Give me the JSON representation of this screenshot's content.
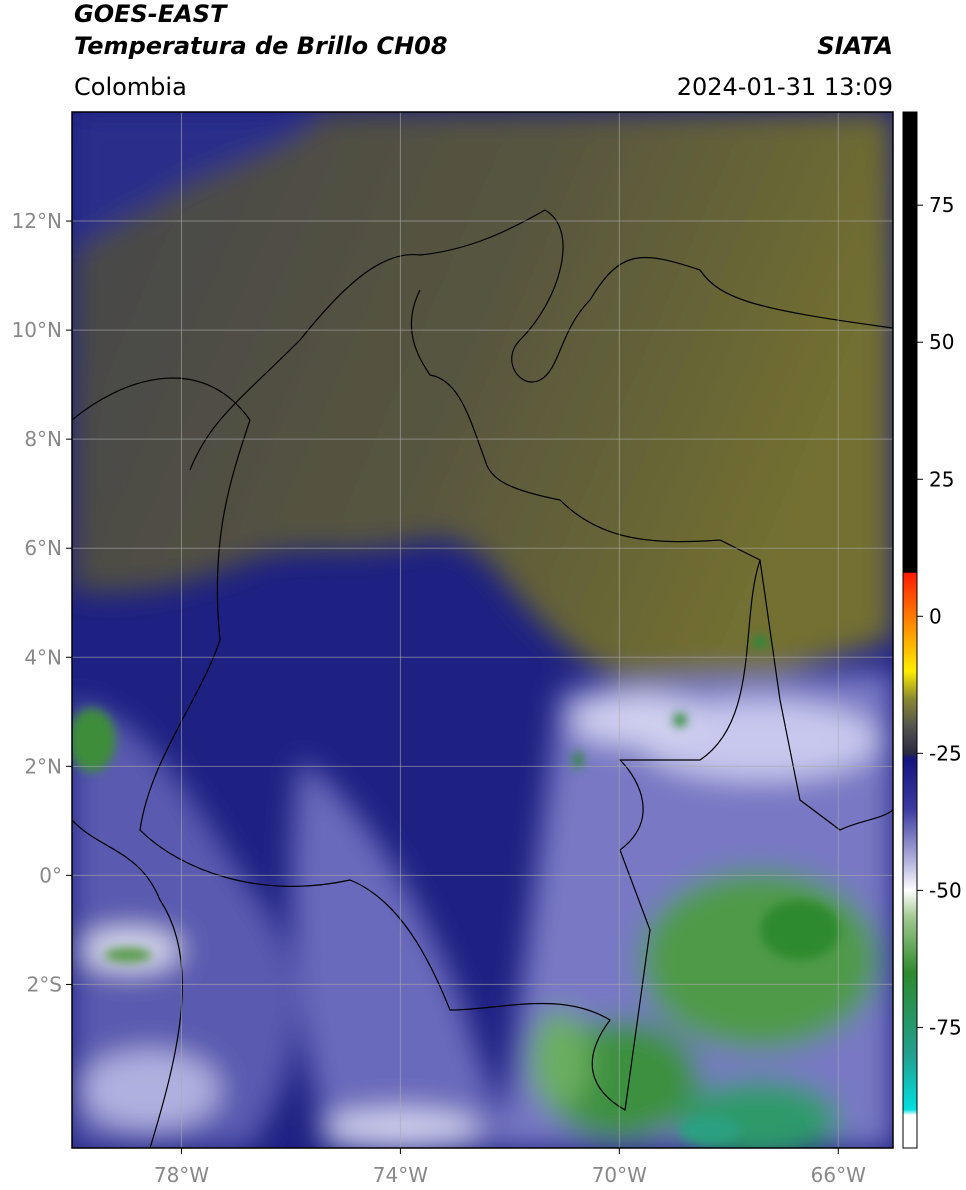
{
  "map": {
    "title": "GOES-EAST",
    "subtitle": "Temperatura de Brillo CH08",
    "source": "SIATA",
    "region": "Colombia",
    "datetime": "2024-01-31 13:09",
    "xlim": [
      -80,
      -65
    ],
    "ylim": [
      -5,
      14
    ],
    "xticks": [
      {
        "value": -78,
        "label": "78°W"
      },
      {
        "value": -74,
        "label": "74°W"
      },
      {
        "value": -70,
        "label": "70°W"
      },
      {
        "value": -66,
        "label": "66°W"
      }
    ],
    "yticks": [
      {
        "value": 12,
        "label": "12°N"
      },
      {
        "value": 10,
        "label": "10°N"
      },
      {
        "value": 8,
        "label": "8°N"
      },
      {
        "value": 6,
        "label": "6°N"
      },
      {
        "value": 4,
        "label": "4°N"
      },
      {
        "value": 2,
        "label": "2°N"
      },
      {
        "value": 0,
        "label": "0°"
      },
      {
        "value": -2,
        "label": "2°S"
      }
    ],
    "grid": true,
    "colorbar": {
      "lim": [
        -97,
        92
      ],
      "ticks": [
        75,
        50,
        25,
        0,
        -25,
        -50,
        -75
      ],
      "stops": [
        {
          "value": 92,
          "color": "#000000"
        },
        {
          "value": 8,
          "color": "#000000"
        },
        {
          "value": 7.9,
          "color": "#ff1a00"
        },
        {
          "value": 0,
          "color": "#ff7a00"
        },
        {
          "value": -10,
          "color": "#ffee00"
        },
        {
          "value": -15,
          "color": "#8a8a30"
        },
        {
          "value": -20,
          "color": "#555550"
        },
        {
          "value": -25,
          "color": "#2a2a40"
        },
        {
          "value": -26,
          "color": "#141480"
        },
        {
          "value": -35,
          "color": "#3a3aa0"
        },
        {
          "value": -45,
          "color": "#b8b8e0"
        },
        {
          "value": -50,
          "color": "#ffffff"
        },
        {
          "value": -55,
          "color": "#a0c890"
        },
        {
          "value": -65,
          "color": "#2e8a2e"
        },
        {
          "value": -80,
          "color": "#22a090"
        },
        {
          "value": -90,
          "color": "#00e0e0"
        },
        {
          "value": -91,
          "color": "#ffffff"
        },
        {
          "value": -97,
          "color": "#ffffff"
        }
      ]
    }
  }
}
